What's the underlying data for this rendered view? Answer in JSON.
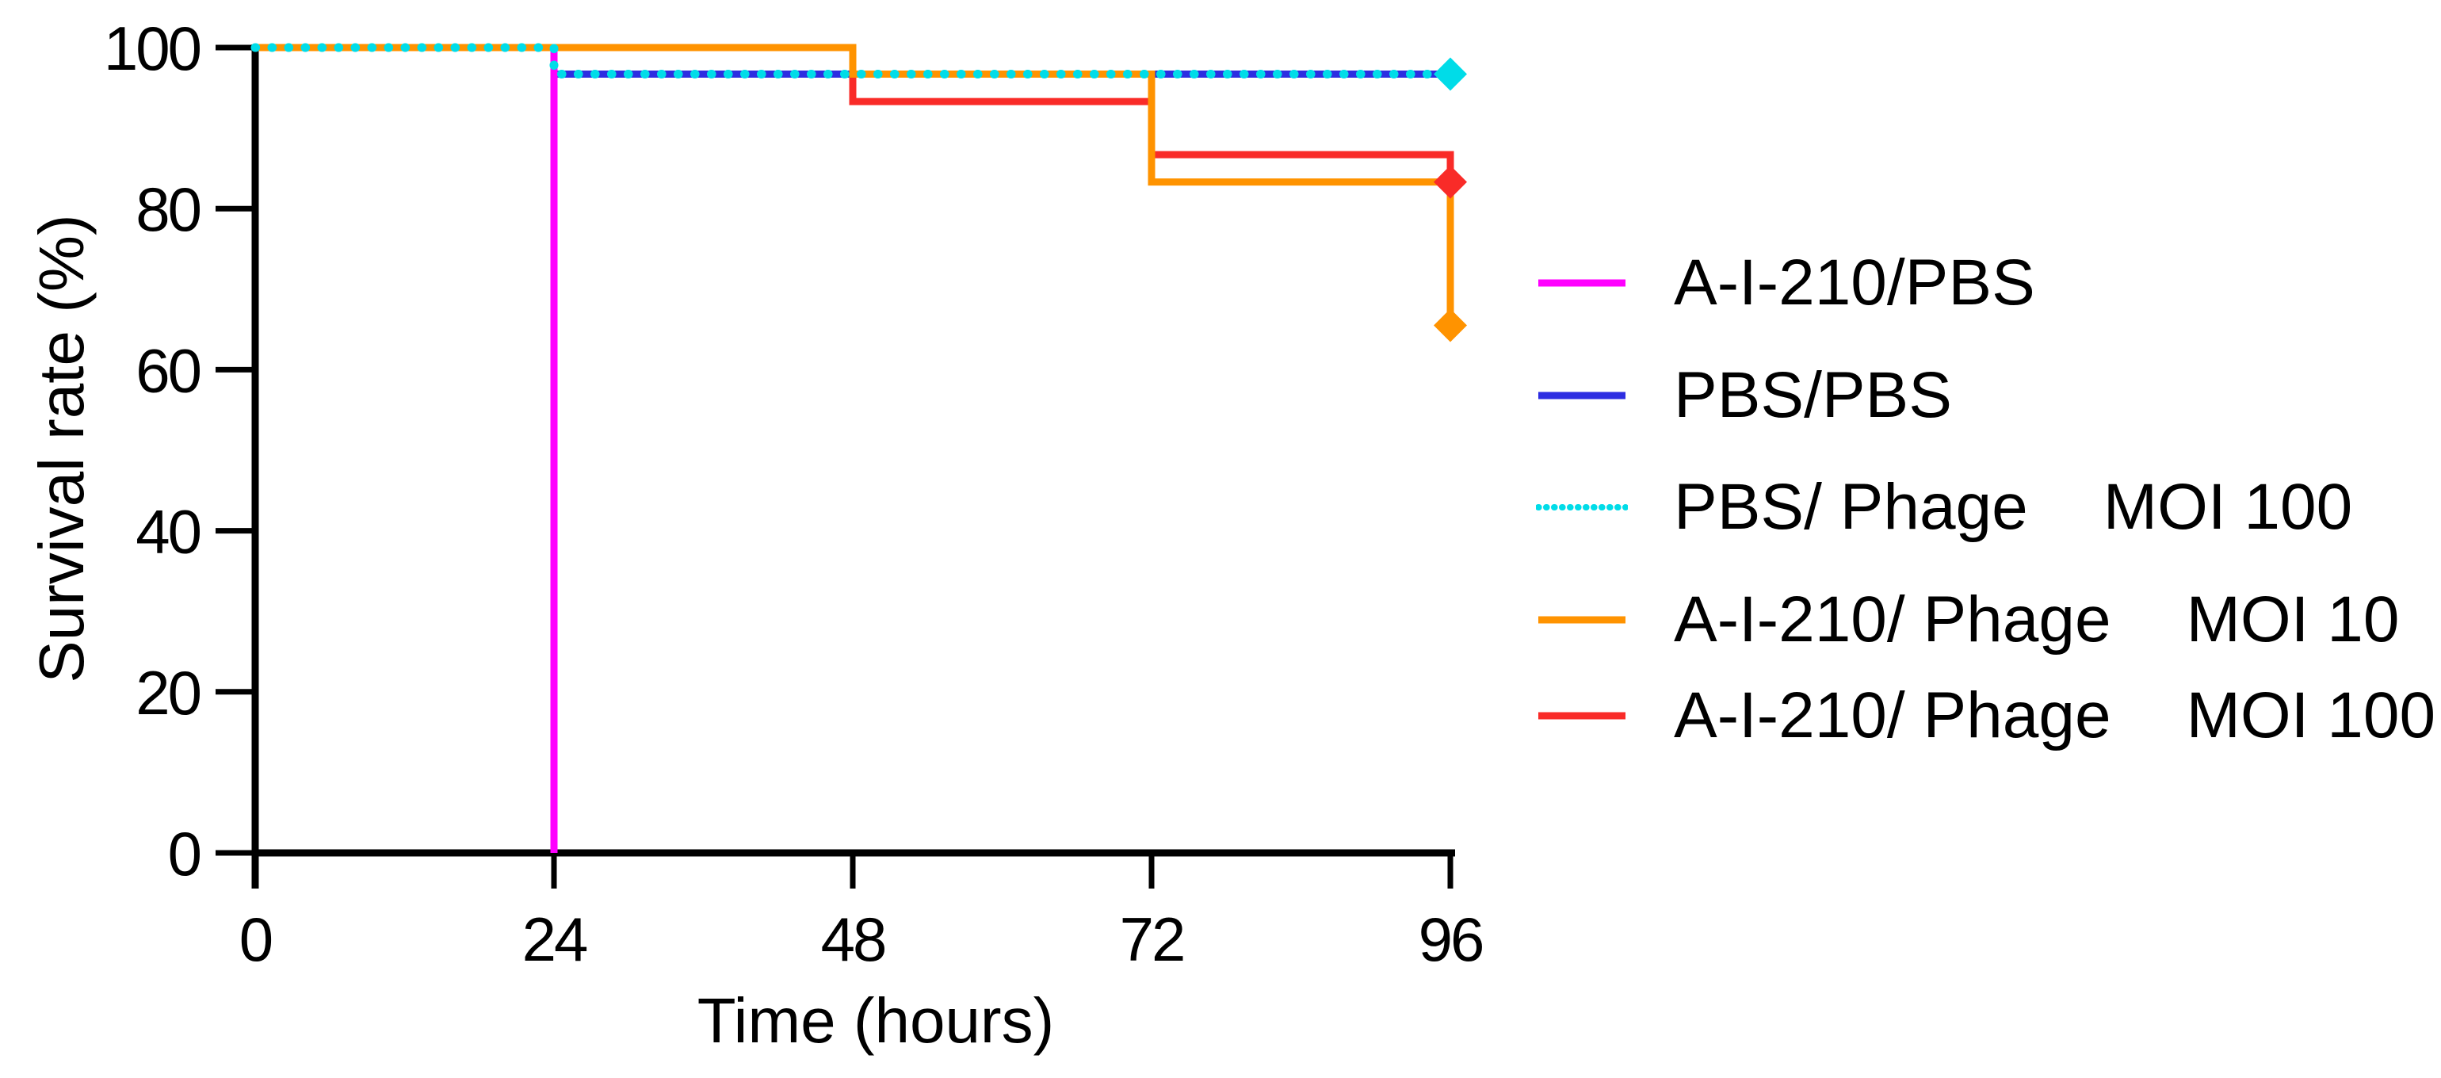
{
  "chart_data": {
    "type": "line",
    "subtype": "kaplan-meier-step",
    "title": "",
    "xlabel": "Time (hours)",
    "ylabel": "Survival rate (%)",
    "xticks": [
      0,
      24,
      48,
      72,
      96
    ],
    "yticks": [
      0,
      20,
      40,
      60,
      80,
      100
    ],
    "xlim": [
      0,
      96
    ],
    "ylim": [
      0,
      100
    ],
    "grid": false,
    "axis_color": "#000000",
    "text_color": "#000000",
    "series": [
      {
        "name": "A-I-210/PBS",
        "color": "#FF00FF",
        "style": "solid",
        "points": [
          [
            0,
            100
          ],
          [
            24,
            100
          ],
          [
            24,
            0
          ]
        ],
        "end_marker": null
      },
      {
        "name": "PBS/PBS",
        "color": "#2D2DE1",
        "style": "solid",
        "points": [
          [
            0,
            100
          ],
          [
            24,
            100
          ],
          [
            24,
            96.7
          ],
          [
            96,
            96.7
          ]
        ],
        "end_marker": null
      },
      {
        "name": "PBS/ Phage MOI 100",
        "color": "#00DCE8",
        "style": "dotted",
        "points": [
          [
            0,
            100
          ],
          [
            24,
            100
          ],
          [
            24,
            96.7
          ],
          [
            96,
            96.7
          ]
        ],
        "end_marker": {
          "shape": "diamond",
          "x": 96,
          "y": 96.7
        }
      },
      {
        "name": "A-I-210/ Phage MOI 10",
        "color": "#FF9300",
        "style": "solid",
        "points": [
          [
            0,
            100
          ],
          [
            48,
            100
          ],
          [
            48,
            96.7
          ],
          [
            72,
            96.7
          ],
          [
            72,
            83.3
          ],
          [
            96,
            83.3
          ],
          [
            96,
            65.5
          ]
        ],
        "end_marker": {
          "shape": "diamond",
          "x": 96,
          "y": 65.5
        }
      },
      {
        "name": "A-I-210/ Phage MOI 100",
        "color": "#F92B28",
        "style": "solid",
        "points": [
          [
            0,
            100
          ],
          [
            24,
            100
          ],
          [
            24,
            96.7
          ],
          [
            48,
            96.7
          ],
          [
            48,
            93.3
          ],
          [
            72,
            93.3
          ],
          [
            72,
            86.7
          ],
          [
            96,
            86.7
          ],
          [
            96,
            83.3
          ]
        ],
        "end_marker": {
          "shape": "diamond",
          "x": 96,
          "y": 83.3
        }
      }
    ],
    "draw_order": [
      4,
      1,
      0,
      3,
      2
    ],
    "legend": {
      "position": "right",
      "items": [
        {
          "label": "A-I-210/PBS",
          "moi": "",
          "series": 0
        },
        {
          "label": "PBS/PBS",
          "moi": "",
          "series": 1
        },
        {
          "label": "PBS/ Phage",
          "moi": "MOI 100",
          "series": 2
        },
        {
          "label": "A-I-210/ Phage",
          "moi": "MOI 10",
          "series": 3
        },
        {
          "label": "A-I-210/ Phage",
          "moi": "MOI 100",
          "series": 4
        }
      ]
    }
  }
}
